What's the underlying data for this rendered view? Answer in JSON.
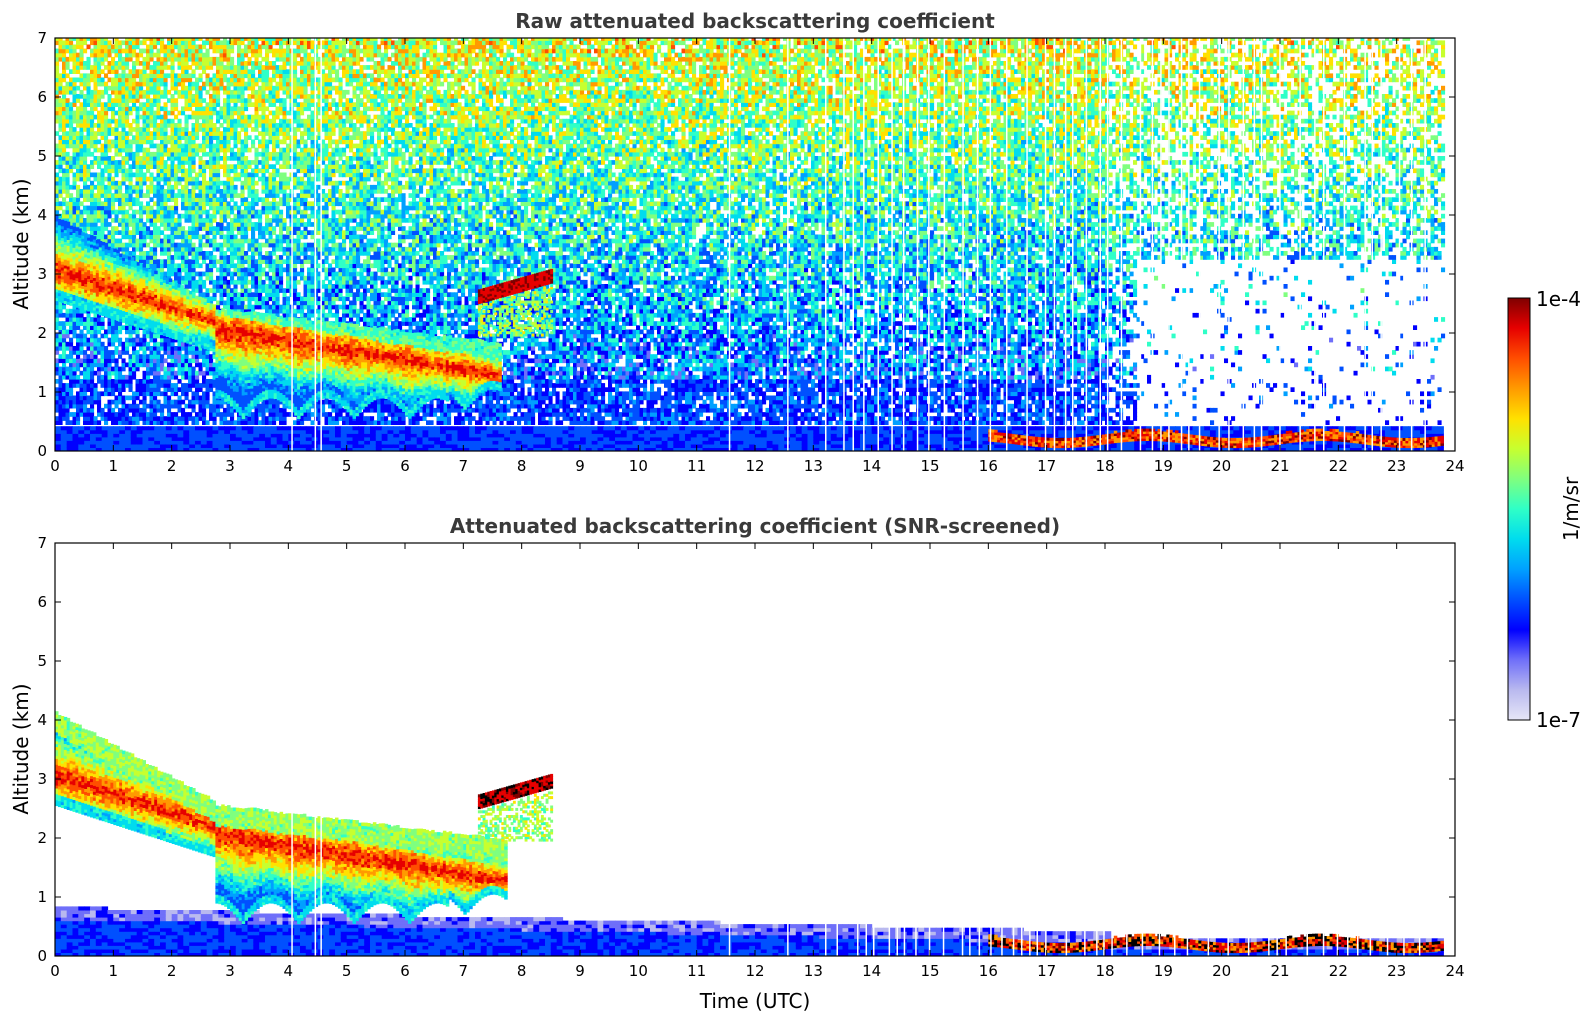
{
  "chart_data": [
    {
      "type": "heatmap",
      "title": "Raw attenuated backscattering coefficient",
      "xlabel": "",
      "ylabel": "Altitude (km)",
      "xlim": [
        0,
        24
      ],
      "ylim": [
        0,
        7
      ],
      "x_ticks": [
        "0",
        "1",
        "2",
        "3",
        "4",
        "5",
        "6",
        "7",
        "8",
        "9",
        "10",
        "11",
        "12",
        "13",
        "14",
        "15",
        "16",
        "17",
        "18",
        "19",
        "20",
        "21",
        "22",
        "23",
        "24"
      ],
      "y_ticks": [
        "0",
        "1",
        "2",
        "3",
        "4",
        "5",
        "6",
        "7"
      ],
      "features": [
        {
          "kind": "aerosol_layer_descending",
          "x_start": 0,
          "x_end": 7.6,
          "top_km_start": 4.0,
          "top_km_end": 1.3,
          "intensity": "high"
        },
        {
          "kind": "thin_cloud",
          "x_start": 7.3,
          "x_end": 8.5,
          "altitude_km": 2.7,
          "intensity": "very_high"
        },
        {
          "kind": "boundary_layer",
          "x_start": 0,
          "x_end": 23.8,
          "top_km": 0.4,
          "intensity": "moderate"
        },
        {
          "kind": "low_cloud_layer",
          "x_start": 16,
          "x_end": 23.8,
          "altitude_km": 0.2,
          "intensity": "very_high"
        },
        {
          "kind": "background_noise",
          "x_start": 0,
          "x_end": 23.8,
          "altitude_km_range": [
            0,
            7
          ]
        }
      ]
    },
    {
      "type": "heatmap",
      "title": "Attenuated backscattering coefficient (SNR-screened)",
      "xlabel": "Time (UTC)",
      "ylabel": "Altitude (km)",
      "xlim": [
        0,
        24
      ],
      "ylim": [
        0,
        7
      ],
      "x_ticks": [
        "0",
        "1",
        "2",
        "3",
        "4",
        "5",
        "6",
        "7",
        "8",
        "9",
        "10",
        "11",
        "12",
        "13",
        "14",
        "15",
        "16",
        "17",
        "18",
        "19",
        "20",
        "21",
        "22",
        "23",
        "24"
      ],
      "y_ticks": [
        "0",
        "1",
        "2",
        "3",
        "4",
        "5",
        "6",
        "7"
      ],
      "features": [
        {
          "kind": "aerosol_layer_descending",
          "x_start": 0,
          "x_end": 7.7,
          "top_km_start": 4.2,
          "top_km_end": 1.3,
          "intensity": "high"
        },
        {
          "kind": "thin_cloud",
          "x_start": 7.2,
          "x_end": 8.5,
          "altitude_km": 2.7,
          "intensity": "very_high"
        },
        {
          "kind": "boundary_layer",
          "x_start": 0,
          "x_end": 23.8,
          "top_km_start": 0.8,
          "top_km_end": 0.25,
          "intensity": "moderate"
        },
        {
          "kind": "low_cloud_layer",
          "x_start": 16,
          "x_end": 23.8,
          "altitude_km": 0.2,
          "intensity": "very_high"
        }
      ]
    }
  ],
  "colorbar": {
    "label": "1/m/sr",
    "max_label": "1e-4",
    "min_label": "1e-7",
    "scale": "log",
    "colormap": "jet",
    "colors": [
      "#e6e6f7",
      "#b9b9ef",
      "#6f6ff9",
      "#0000ff",
      "#0050ff",
      "#00a0ff",
      "#00dcee",
      "#2fffc7",
      "#7fff7f",
      "#c7ff2f",
      "#ffe100",
      "#ff9a00",
      "#ff4e00",
      "#e60000",
      "#7f0000"
    ]
  }
}
